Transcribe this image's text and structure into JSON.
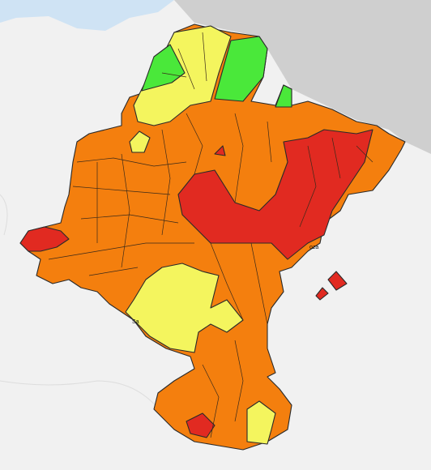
{
  "map": {
    "labels": [
      "oza",
      "Sa"
    ]
  }
}
